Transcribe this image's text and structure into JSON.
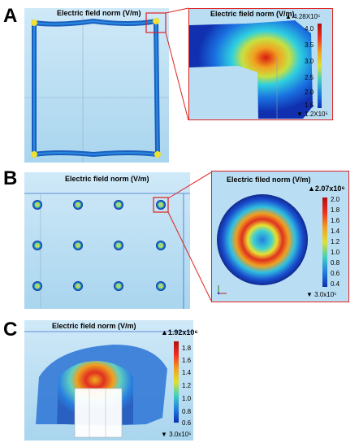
{
  "panels": {
    "a": {
      "letter": "A",
      "left_title": "Electric field norm (V/m)",
      "right_title": "Electric field norm (V/m)",
      "colorbar": {
        "max_label": "▲ 4.28X10⁵",
        "min_label": "▼ 1.2X10⁵",
        "ticks": [
          "4.0",
          "3.5",
          "3.0",
          "2.5",
          "2.0",
          "1.5"
        ]
      }
    },
    "b": {
      "letter": "B",
      "left_title": "Electric field norm (V/m)",
      "right_title": "Electric filed norm (V/m)",
      "colorbar": {
        "max_label": "▲2.07x10⁶",
        "min_label": "▼ 3.0x10⁵",
        "ticks": [
          "2.0",
          "1.8",
          "1.6",
          "1.4",
          "1.2",
          "1.0",
          "0.8",
          "0.6",
          "0.4"
        ]
      }
    },
    "c": {
      "letter": "C",
      "title": "Electric field norm (V/m)",
      "colorbar": {
        "max_label": "▲1.92x10⁶",
        "min_label": "▼ 3.0x10⁵",
        "ticks": [
          "1.8",
          "1.6",
          "1.4",
          "1.2",
          "1.0",
          "0.8",
          "0.6"
        ]
      }
    }
  },
  "colors": {
    "background_blue": "#b7dcf2",
    "frame_blue": "#1f4ea8",
    "highlight_red": "#e02020"
  }
}
